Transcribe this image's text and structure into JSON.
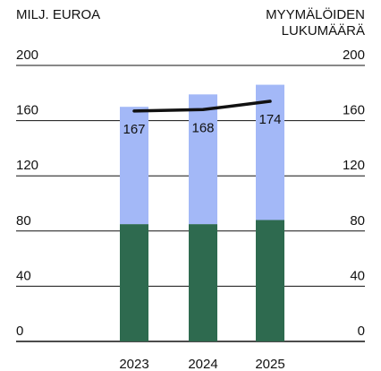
{
  "chart_data": {
    "type": "bar",
    "stacked": true,
    "ylabel": "MILJ. EUROA",
    "y2label": [
      "MYYMÄLÖIDEN",
      "LUKUMÄÄRÄ"
    ],
    "categories": [
      "2023",
      "2024",
      "2025"
    ],
    "series": [
      {
        "color": "#2e6a4f",
        "values": [
          85,
          85,
          88
        ]
      },
      {
        "color": "#a3b8f7",
        "values": [
          85,
          94,
          98
        ]
      },
      {
        "type": "line",
        "axis": "y2",
        "color": "#111111",
        "values": [
          167,
          168,
          174
        ]
      }
    ],
    "ylim": [
      0,
      200
    ],
    "yticks": [
      0,
      40,
      80,
      120,
      160,
      200
    ],
    "y2lim": [
      0,
      200
    ],
    "y2ticks": [
      0,
      40,
      80,
      120,
      160,
      200
    ],
    "grid": true
  }
}
